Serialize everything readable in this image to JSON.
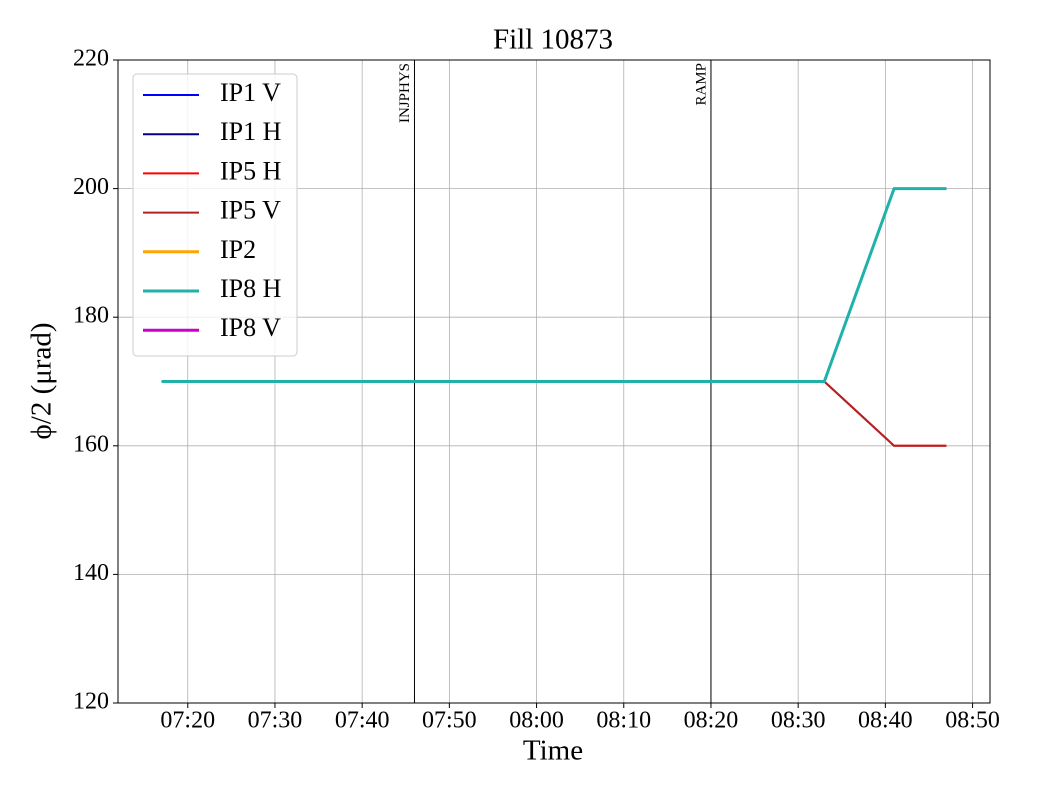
{
  "chart_data": {
    "type": "line",
    "title": "Fill 10873",
    "xlabel": "Time",
    "ylabel": "ϕ/2 (μrad)",
    "x": [
      "07:17",
      "08:33",
      "08:41",
      "08:47"
    ],
    "series": [
      {
        "name": "IP1 V",
        "color": "#0000ff",
        "width": 2,
        "values": [
          170,
          170,
          200,
          200
        ]
      },
      {
        "name": "IP1 H",
        "color": "#00008b",
        "width": 2,
        "values": [
          170,
          170,
          200,
          200
        ]
      },
      {
        "name": "IP5 H",
        "color": "#ff0000",
        "width": 2,
        "values": [
          170,
          170,
          160,
          160
        ]
      },
      {
        "name": "IP5 V",
        "color": "#b22222",
        "width": 2,
        "values": [
          170,
          170,
          160,
          160
        ]
      },
      {
        "name": "IP2",
        "color": "#ffa500",
        "width": 3,
        "values": [
          null,
          null,
          null,
          null
        ]
      },
      {
        "name": "IP8 H",
        "color": "#20b2aa",
        "width": 3,
        "values": [
          170,
          170,
          200,
          200
        ]
      },
      {
        "name": "IP8 V",
        "color": "#cc00cc",
        "width": 3,
        "values": [
          null,
          null,
          null,
          null
        ]
      }
    ],
    "markers": [
      {
        "x": "07:46",
        "label": "INJPHYS"
      },
      {
        "x": "08:20",
        "label": "RAMP"
      }
    ],
    "xlim": [
      "07:12",
      "08:52"
    ],
    "xticks": [
      "07:20",
      "07:30",
      "07:40",
      "07:50",
      "08:00",
      "08:10",
      "08:20",
      "08:30",
      "08:40",
      "08:50"
    ],
    "ylim": [
      120,
      220
    ],
    "yticks": [
      120,
      140,
      160,
      180,
      200,
      220
    ],
    "grid": true,
    "legend": "upper left"
  }
}
